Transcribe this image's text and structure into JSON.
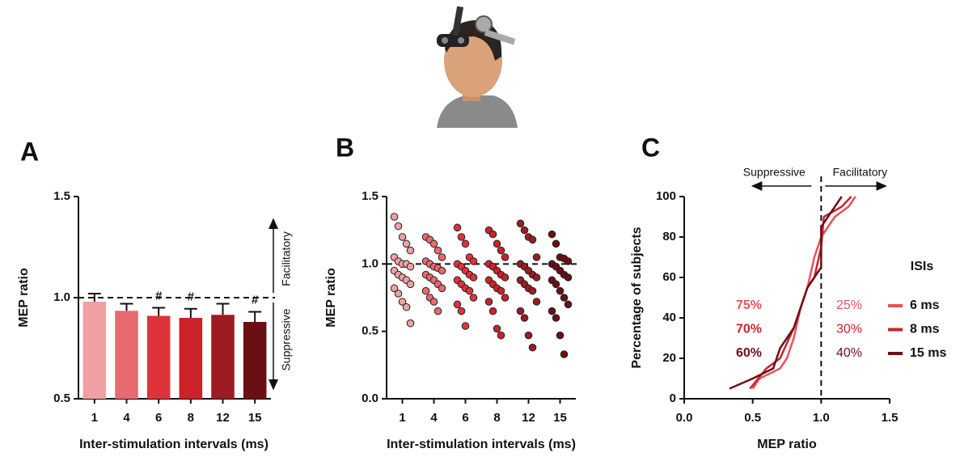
{
  "chart_data": [
    {
      "type": "bar",
      "panel": "A",
      "y_label": "MEP ratio",
      "x_label": "Inter-stimulation intervals (ms)",
      "categories": [
        "1",
        "4",
        "6",
        "8",
        "12",
        "15"
      ],
      "values": [
        0.98,
        0.935,
        0.91,
        0.9,
        0.915,
        0.88
      ],
      "errors": [
        0.04,
        0.035,
        0.04,
        0.045,
        0.055,
        0.05
      ],
      "colors": [
        "#f0a0a3",
        "#e8696f",
        "#e0323b",
        "#cc2229",
        "#9b1c22",
        "#6a1014"
      ],
      "significance": [
        null,
        null,
        "#",
        "#",
        null,
        "#"
      ],
      "ylim": [
        0.5,
        1.5
      ],
      "yticks": [
        0.5,
        {
          "value": 1,
          "label": "1.0"
        },
        1.5
      ],
      "reference_line": 1,
      "above_label": "Facilitatory",
      "below_label": "Suppressive"
    },
    {
      "type": "strip",
      "panel": "B",
      "y_label": "MEP ratio",
      "x_label": "Inter-stimulation intervals (ms)",
      "categories": [
        "1",
        "4",
        "6",
        "8",
        "12",
        "15"
      ],
      "colors": [
        "#f0a0a3",
        "#e8696f",
        "#e0323b",
        "#cc2229",
        "#9b1c22",
        "#6a1014"
      ],
      "values": [
        [
          1.35,
          1.28,
          1.2,
          1.15,
          1.1,
          1.05,
          1.02,
          1.0,
          1.0,
          0.98,
          0.95,
          0.92,
          0.9,
          0.88,
          0.85,
          0.82,
          0.78,
          0.72,
          0.68,
          0.56
        ],
        [
          1.2,
          1.18,
          1.15,
          1.1,
          1.05,
          1.02,
          1.0,
          0.98,
          0.97,
          0.95,
          0.92,
          0.9,
          0.88,
          0.85,
          0.82,
          0.8,
          0.75,
          0.72,
          0.65
        ],
        [
          1.27,
          1.2,
          1.15,
          1.05,
          1.02,
          1.0,
          0.98,
          0.95,
          0.92,
          0.9,
          0.88,
          0.85,
          0.82,
          0.8,
          0.75,
          0.7,
          0.65,
          0.54
        ],
        [
          1.25,
          1.22,
          1.15,
          1.1,
          1.05,
          1.0,
          0.98,
          0.95,
          0.92,
          0.9,
          0.88,
          0.85,
          0.82,
          0.8,
          0.75,
          0.72,
          0.65,
          0.52,
          0.47
        ],
        [
          1.3,
          1.25,
          1.2,
          1.18,
          1.05,
          1.0,
          0.98,
          0.95,
          0.92,
          0.9,
          0.88,
          0.85,
          0.82,
          0.8,
          0.72,
          0.65,
          0.6,
          0.47,
          0.38
        ],
        [
          1.22,
          1.15,
          1.05,
          1.04,
          1.02,
          1.0,
          0.98,
          0.95,
          0.92,
          0.9,
          0.88,
          0.85,
          0.8,
          0.75,
          0.7,
          0.65,
          0.6,
          0.47,
          0.33
        ]
      ],
      "ylim": [
        0,
        1.5
      ],
      "yticks": [
        {
          "value": 0,
          "label": "0.0"
        },
        0.5,
        {
          "value": 1,
          "label": "1.0"
        },
        1.5
      ],
      "reference_line": 1
    },
    {
      "type": "line",
      "panel": "C",
      "y_label": "Percentage of subjects",
      "x_label": "MEP ratio",
      "legend_title": "ISIs",
      "left_arrow_label": "Suppressive",
      "right_arrow_label": "Facilitatory",
      "series": [
        {
          "name": "6 ms",
          "color": "#e8525a",
          "suppressive": "75%",
          "facilitatory": "25%",
          "x": [
            0.5,
            0.55,
            0.7,
            0.75,
            0.8,
            0.85,
            0.9,
            0.95,
            1.0,
            1.05,
            1.1,
            1.2,
            1.25
          ],
          "values": [
            5,
            10,
            15,
            20,
            30,
            45,
            55,
            70,
            80,
            85,
            90,
            95,
            100
          ]
        },
        {
          "name": "8 ms",
          "color": "#c8232c",
          "suppressive": "70%",
          "facilitatory": "30%",
          "x": [
            0.48,
            0.6,
            0.7,
            0.8,
            0.9,
            0.95,
            1.0,
            1.02,
            1.15,
            1.22
          ],
          "values": [
            5,
            15,
            20,
            35,
            55,
            60,
            75,
            90,
            95,
            100
          ]
        },
        {
          "name": "15 ms",
          "color": "#6b1016",
          "suppressive": "60%",
          "facilitatory": "40%",
          "x": [
            0.33,
            0.5,
            0.65,
            0.7,
            0.8,
            0.9,
            1.0,
            1.0,
            1.05,
            1.15
          ],
          "values": [
            5,
            10,
            15,
            25,
            35,
            55,
            65,
            85,
            90,
            100
          ]
        }
      ],
      "xlim": [
        0,
        1.5
      ],
      "xticks": [
        {
          "value": 0,
          "label": "0.0"
        },
        0.5,
        {
          "value": 1,
          "label": "1.0"
        },
        1.5
      ],
      "ylim": [
        0,
        100
      ],
      "yticks": [
        0,
        20,
        40,
        60,
        80,
        100
      ],
      "reference_x": 1
    }
  ]
}
